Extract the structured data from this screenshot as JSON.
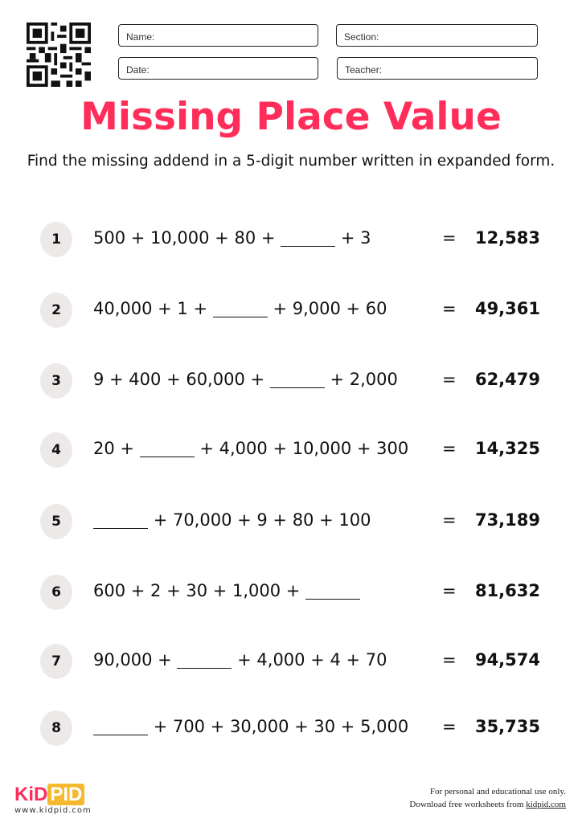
{
  "header": {
    "fields": [
      "Name:",
      "Section:",
      "Date:",
      "Teacher:"
    ],
    "qr_icon": "qr-code"
  },
  "title": "Missing Place Value",
  "title_color": "#ff2d5a",
  "subtitle": "Find the missing addend in a 5-digit number written in expanded form.",
  "problems": [
    {
      "n": "1",
      "before": "500 + 10,000 + 80 +",
      "after": "+ 3",
      "eq": "=",
      "answer": "12,583"
    },
    {
      "n": "2",
      "before": "40,000 + 1 +",
      "after": "+ 9,000 + 60",
      "eq": "=",
      "answer": "49,361"
    },
    {
      "n": "3",
      "before": "9 + 400 + 60,000 +",
      "after": "+ 2,000",
      "eq": "=",
      "answer": "62,479"
    },
    {
      "n": "4",
      "before": "20 +",
      "after": "+ 4,000 + 10,000 + 300",
      "eq": "=",
      "answer": "14,325"
    },
    {
      "n": "5",
      "before": "",
      "after": "+ 70,000 + 9 + 80 + 100",
      "eq": "=",
      "answer": "73,189"
    },
    {
      "n": "6",
      "before": "600 + 2 + 30 + 1,000 +",
      "after": "",
      "eq": "=",
      "answer": "81,632"
    },
    {
      "n": "7",
      "before": "90,000 +",
      "after": "+ 4,000 + 4 + 70",
      "eq": "=",
      "answer": "94,574"
    },
    {
      "n": "8",
      "before": "",
      "after": "+ 700 + 30,000 + 30 + 5,000",
      "eq": "=",
      "answer": "35,735"
    }
  ],
  "footer": {
    "logo_a": "KID",
    "logo_b": "PID",
    "site": "www.kidpid.com",
    "line1": "For personal and educational use only.",
    "line2": "Download free worksheets from ",
    "link": "kidpid.com"
  }
}
